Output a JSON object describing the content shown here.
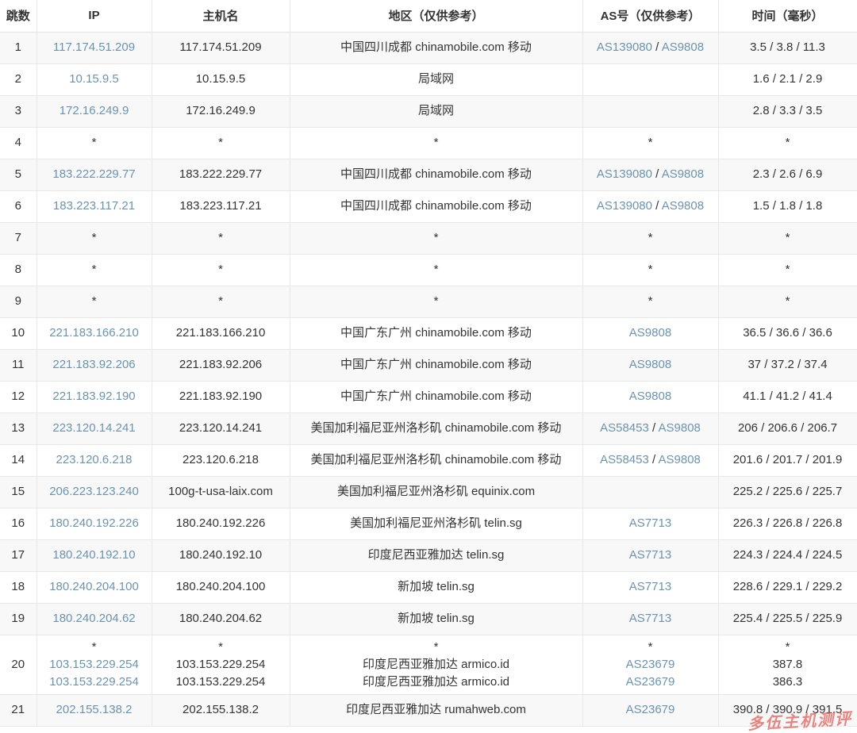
{
  "colors": {
    "link": "#6b93ae",
    "text": "#333333",
    "row_alt_bg": "#f8f8f8",
    "border": "#e8e8e8",
    "watermark": "#e05a52"
  },
  "watermark": {
    "text": "多伍主机测评"
  },
  "table": {
    "columns": [
      {
        "key": "hop",
        "label": "跳数"
      },
      {
        "key": "ip",
        "label": "IP"
      },
      {
        "key": "host",
        "label": "主机名"
      },
      {
        "key": "region",
        "label": "地区（仅供参考）"
      },
      {
        "key": "asn",
        "label": "AS号（仅供参考）"
      },
      {
        "key": "time",
        "label": "时间（毫秒）"
      }
    ],
    "rows": [
      {
        "hop": "1",
        "ip": [
          "117.174.51.209"
        ],
        "host": [
          "117.174.51.209"
        ],
        "region": [
          "中国四川成都 chinamobile.com 移动"
        ],
        "asn": [
          [
            "AS139080",
            "AS9808"
          ]
        ],
        "time": [
          "3.5 / 3.8 / 11.3"
        ]
      },
      {
        "hop": "2",
        "ip": [
          "10.15.9.5"
        ],
        "host": [
          "10.15.9.5"
        ],
        "region": [
          "局域网"
        ],
        "asn": [],
        "time": [
          "1.6 / 2.1 / 2.9"
        ]
      },
      {
        "hop": "3",
        "ip": [
          "172.16.249.9"
        ],
        "host": [
          "172.16.249.9"
        ],
        "region": [
          "局域网"
        ],
        "asn": [],
        "time": [
          "2.8 / 3.3 / 3.5"
        ]
      },
      {
        "hop": "4",
        "ip": [
          "*"
        ],
        "host": [
          "*"
        ],
        "region": [
          "*"
        ],
        "asn": [
          "*"
        ],
        "time": [
          "*"
        ]
      },
      {
        "hop": "5",
        "ip": [
          "183.222.229.77"
        ],
        "host": [
          "183.222.229.77"
        ],
        "region": [
          "中国四川成都 chinamobile.com 移动"
        ],
        "asn": [
          [
            "AS139080",
            "AS9808"
          ]
        ],
        "time": [
          "2.3 / 2.6 / 6.9"
        ]
      },
      {
        "hop": "6",
        "ip": [
          "183.223.117.21"
        ],
        "host": [
          "183.223.117.21"
        ],
        "region": [
          "中国四川成都 chinamobile.com 移动"
        ],
        "asn": [
          [
            "AS139080",
            "AS9808"
          ]
        ],
        "time": [
          "1.5 / 1.8 / 1.8"
        ]
      },
      {
        "hop": "7",
        "ip": [
          "*"
        ],
        "host": [
          "*"
        ],
        "region": [
          "*"
        ],
        "asn": [
          "*"
        ],
        "time": [
          "*"
        ]
      },
      {
        "hop": "8",
        "ip": [
          "*"
        ],
        "host": [
          "*"
        ],
        "region": [
          "*"
        ],
        "asn": [
          "*"
        ],
        "time": [
          "*"
        ]
      },
      {
        "hop": "9",
        "ip": [
          "*"
        ],
        "host": [
          "*"
        ],
        "region": [
          "*"
        ],
        "asn": [
          "*"
        ],
        "time": [
          "*"
        ]
      },
      {
        "hop": "10",
        "ip": [
          "221.183.166.210"
        ],
        "host": [
          "221.183.166.210"
        ],
        "region": [
          "中国广东广州 chinamobile.com 移动"
        ],
        "asn": [
          [
            "AS9808"
          ]
        ],
        "time": [
          "36.5 / 36.6 / 36.6"
        ]
      },
      {
        "hop": "11",
        "ip": [
          "221.183.92.206"
        ],
        "host": [
          "221.183.92.206"
        ],
        "region": [
          "中国广东广州 chinamobile.com 移动"
        ],
        "asn": [
          [
            "AS9808"
          ]
        ],
        "time": [
          "37 / 37.2 / 37.4"
        ]
      },
      {
        "hop": "12",
        "ip": [
          "221.183.92.190"
        ],
        "host": [
          "221.183.92.190"
        ],
        "region": [
          "中国广东广州 chinamobile.com 移动"
        ],
        "asn": [
          [
            "AS9808"
          ]
        ],
        "time": [
          "41.1 / 41.2 / 41.4"
        ]
      },
      {
        "hop": "13",
        "ip": [
          "223.120.14.241"
        ],
        "host": [
          "223.120.14.241"
        ],
        "region": [
          "美国加利福尼亚州洛杉矶 chinamobile.com 移动"
        ],
        "asn": [
          [
            "AS58453",
            "AS9808"
          ]
        ],
        "time": [
          "206 / 206.6 / 206.7"
        ]
      },
      {
        "hop": "14",
        "ip": [
          "223.120.6.218"
        ],
        "host": [
          "223.120.6.218"
        ],
        "region": [
          "美国加利福尼亚州洛杉矶 chinamobile.com 移动"
        ],
        "asn": [
          [
            "AS58453",
            "AS9808"
          ]
        ],
        "time": [
          "201.6 / 201.7 / 201.9"
        ]
      },
      {
        "hop": "15",
        "ip": [
          "206.223.123.240"
        ],
        "host": [
          "100g-t-usa-laix.com"
        ],
        "region": [
          "美国加利福尼亚州洛杉矶 equinix.com"
        ],
        "asn": [],
        "time": [
          "225.2 / 225.6 / 225.7"
        ]
      },
      {
        "hop": "16",
        "ip": [
          "180.240.192.226"
        ],
        "host": [
          "180.240.192.226"
        ],
        "region": [
          "美国加利福尼亚州洛杉矶 telin.sg"
        ],
        "asn": [
          [
            "AS7713"
          ]
        ],
        "time": [
          "226.3 / 226.8 / 226.8"
        ]
      },
      {
        "hop": "17",
        "ip": [
          "180.240.192.10"
        ],
        "host": [
          "180.240.192.10"
        ],
        "region": [
          "印度尼西亚雅加达 telin.sg"
        ],
        "asn": [
          [
            "AS7713"
          ]
        ],
        "time": [
          "224.3 / 224.4 / 224.5"
        ]
      },
      {
        "hop": "18",
        "ip": [
          "180.240.204.100"
        ],
        "host": [
          "180.240.204.100"
        ],
        "region": [
          "新加坡 telin.sg"
        ],
        "asn": [
          [
            "AS7713"
          ]
        ],
        "time": [
          "228.6 / 229.1 / 229.2"
        ]
      },
      {
        "hop": "19",
        "ip": [
          "180.240.204.62"
        ],
        "host": [
          "180.240.204.62"
        ],
        "region": [
          "新加坡 telin.sg"
        ],
        "asn": [
          [
            "AS7713"
          ]
        ],
        "time": [
          "225.4 / 225.5 / 225.9"
        ]
      },
      {
        "hop": "20",
        "ip": [
          "*",
          "103.153.229.254",
          "103.153.229.254"
        ],
        "host": [
          "*",
          "103.153.229.254",
          "103.153.229.254"
        ],
        "region": [
          "*",
          "印度尼西亚雅加达 armico.id",
          "印度尼西亚雅加达 armico.id"
        ],
        "asn": [
          "*",
          [
            "AS23679"
          ],
          [
            "AS23679"
          ]
        ],
        "time": [
          "*",
          "387.8",
          "386.3"
        ]
      },
      {
        "hop": "21",
        "ip": [
          "202.155.138.2"
        ],
        "host": [
          "202.155.138.2"
        ],
        "region": [
          "印度尼西亚雅加达 rumahweb.com"
        ],
        "asn": [
          [
            "AS23679"
          ]
        ],
        "time": [
          "390.8 / 390.9 / 391.5"
        ]
      }
    ]
  }
}
